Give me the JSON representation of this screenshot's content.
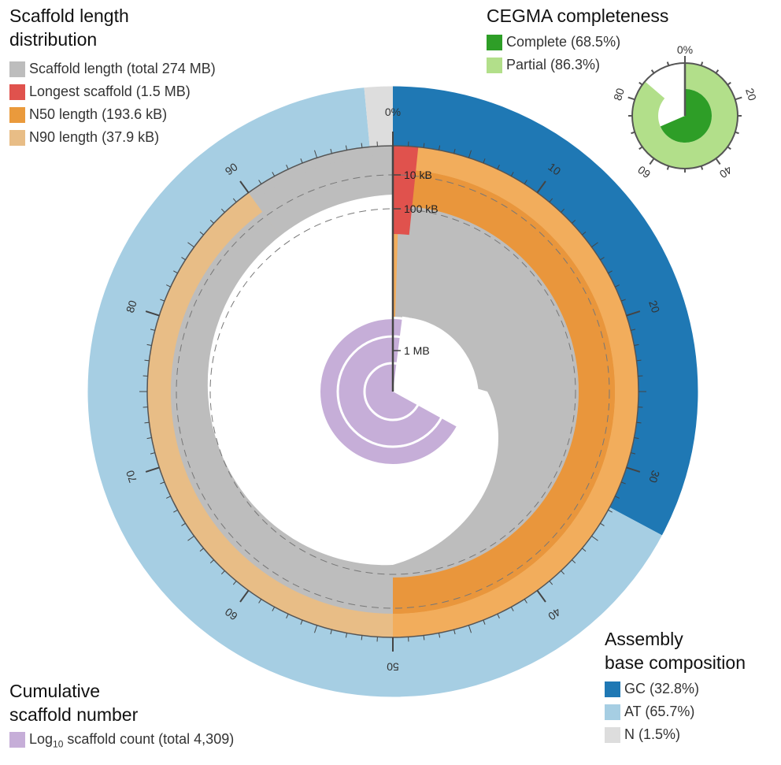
{
  "chart_data": {
    "type": "snail",
    "scaffold_panel": {
      "title_line1": "Scaffold length",
      "title_line2": "distribution",
      "legend": [
        {
          "key": "scaffold",
          "label": "Scaffold length (total 274 MB)",
          "color": "#bdbdbd"
        },
        {
          "key": "longest",
          "label": "Longest scaffold (1.5 MB)",
          "color": "#e0524d"
        },
        {
          "key": "n50",
          "label": "N50 length (193.6 kB)",
          "color": "#ea9a3c"
        },
        {
          "key": "n90",
          "label": "N90 length (37.9 kB)",
          "color": "#e8bd86"
        }
      ]
    },
    "cegma_panel": {
      "title": "CEGMA completeness",
      "complete_pct": 68.5,
      "partial_pct": 86.3,
      "legend": [
        {
          "key": "complete",
          "label": "Complete (68.5%)",
          "color": "#2e9e27"
        },
        {
          "key": "partial",
          "label": "Partial (86.3%)",
          "color": "#b2df8a"
        }
      ],
      "ticks": [
        "0%",
        "20",
        "40",
        "60",
        "80"
      ]
    },
    "composition_panel": {
      "title_line1": "Assembly",
      "title_line2": "base composition",
      "gc_pct": 32.8,
      "at_pct": 65.7,
      "n_pct": 1.5,
      "legend": [
        {
          "key": "gc",
          "label": "GC (32.8%)",
          "color": "#1f78b4"
        },
        {
          "key": "at",
          "label": "AT (65.7%)",
          "color": "#a6cee3"
        },
        {
          "key": "n",
          "label": "N (1.5%)",
          "color": "#dddddd"
        }
      ]
    },
    "count_panel": {
      "title_line1": "Cumulative",
      "title_line2": "scaffold number",
      "legend_prefix": "Log",
      "legend_sub": "10",
      "legend_suffix": " scaffold count (total 4,309)",
      "color": "#c6aed8"
    },
    "percent_axis": {
      "zero_label": "0%",
      "major_labels": [
        "10",
        "20",
        "30",
        "40",
        "50",
        "60",
        "70",
        "80",
        "90"
      ]
    },
    "length_scale_labels": [
      "10 kB",
      "100 kB",
      "1 MB"
    ],
    "n50_percent": 50,
    "n90_percent": 90,
    "longest_percent": 0.55
  }
}
